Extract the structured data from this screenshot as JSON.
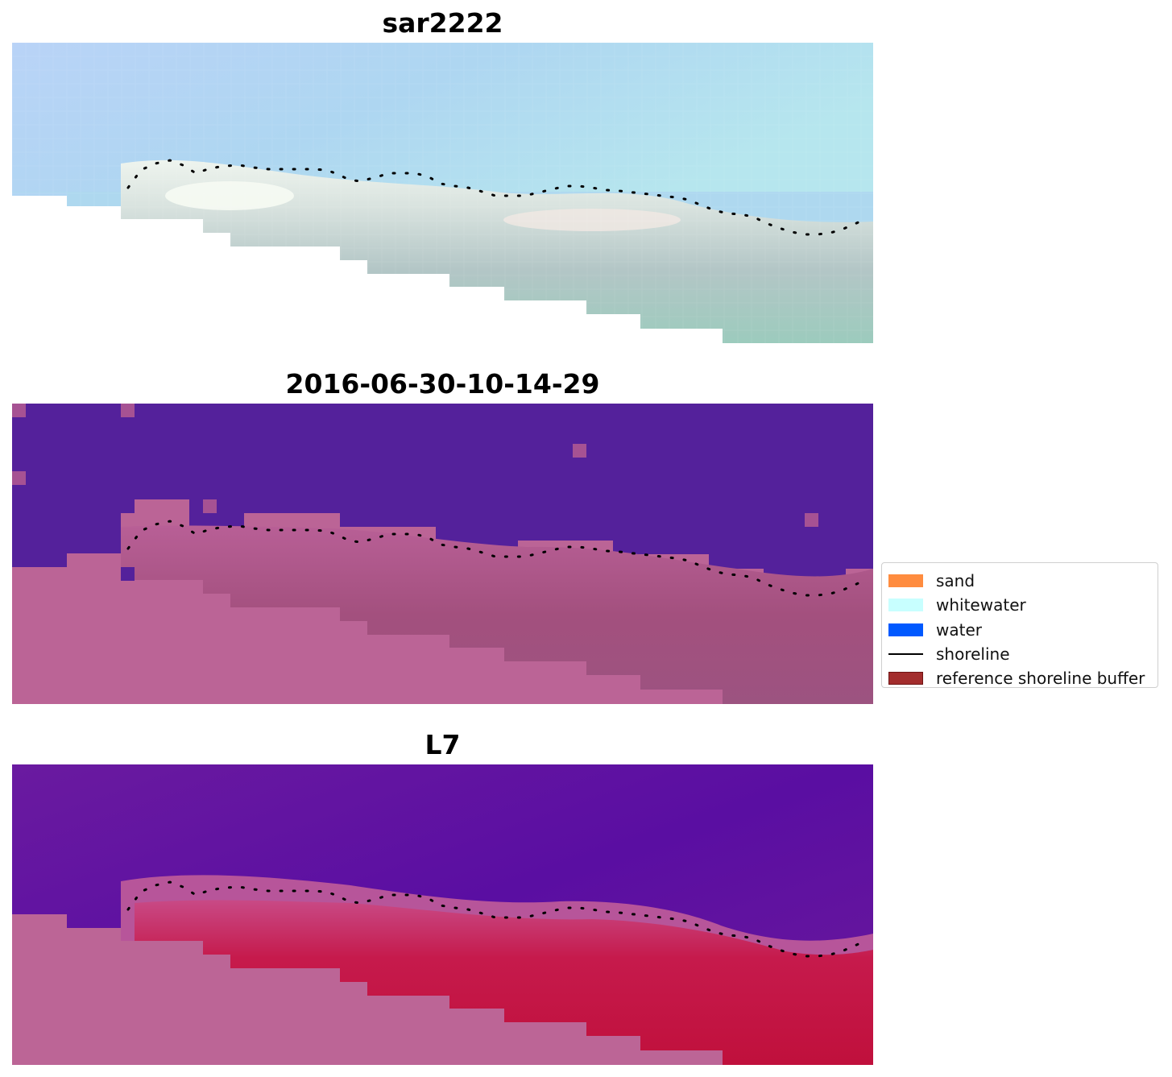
{
  "panels": [
    {
      "id": "rgb",
      "title": "sar2222"
    },
    {
      "id": "classified",
      "title": "2016-06-30-10-14-29"
    },
    {
      "id": "index",
      "title": "L7"
    }
  ],
  "legend": {
    "items": [
      {
        "label": "sand",
        "type": "patch",
        "color": "#ff8c3f",
        "border": "#ff8c3f"
      },
      {
        "label": "whitewater",
        "type": "patch",
        "color": "#c8ffff",
        "border": "#c8ffff"
      },
      {
        "label": "water",
        "type": "patch",
        "color": "#0059ff",
        "border": "#0059ff"
      },
      {
        "label": "shoreline",
        "type": "line",
        "color": "#000000"
      },
      {
        "label": "reference shoreline buffer",
        "type": "patch",
        "color": "#a32d2d",
        "border": "#6e1414"
      }
    ]
  }
}
